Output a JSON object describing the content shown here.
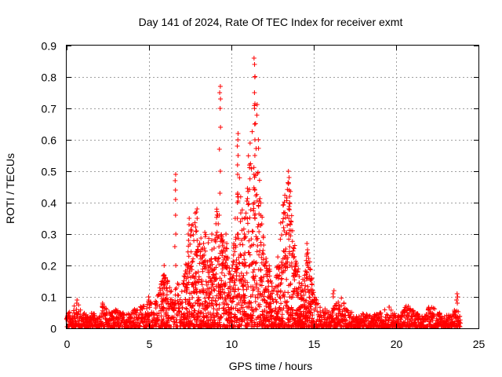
{
  "chart_data": {
    "type": "scatter",
    "title": "Day 141 of 2024, Rate Of TEC Index for receiver exmt",
    "xlabel": "GPS time / hours",
    "ylabel": "ROTI / TECUs",
    "xlim": [
      0,
      25
    ],
    "ylim": [
      0,
      0.9
    ],
    "x_ticks": [
      "0",
      "5",
      "10",
      "15",
      "20",
      "25"
    ],
    "y_ticks": [
      "0",
      "0.1",
      "0.2",
      "0.3",
      "0.4",
      "0.5",
      "0.6",
      "0.7",
      "0.8",
      "0.9"
    ],
    "grid": true,
    "marker": "+",
    "colors": {
      "series": "#ff0000",
      "grid": "#a0a0a0",
      "axis": "#000000"
    },
    "envelope": {
      "x": [
        0.0,
        0.3,
        0.6,
        1.0,
        1.5,
        2.0,
        2.2,
        2.5,
        3.0,
        3.5,
        4.0,
        4.5,
        4.8,
        5.0,
        5.3,
        5.6,
        5.9,
        6.2,
        6.5,
        6.7,
        7.0,
        7.3,
        7.6,
        7.8,
        8.0,
        8.3,
        8.6,
        8.9,
        9.1,
        9.4,
        9.7,
        10.0,
        10.3,
        10.5,
        10.8,
        11.0,
        11.3,
        11.5,
        11.8,
        12.0,
        12.3,
        12.6,
        13.0,
        13.3,
        13.5,
        13.8,
        14.0,
        14.3,
        14.6,
        14.8,
        15.1,
        15.5,
        16.0,
        16.3,
        16.7,
        17.0,
        17.5,
        18.0,
        18.5,
        19.0,
        19.3,
        19.6,
        20.0,
        20.3,
        20.6,
        21.0,
        21.5,
        21.8,
        22.1,
        22.5,
        23.0,
        23.4,
        23.7,
        23.9
      ],
      "y": [
        0.06,
        0.05,
        0.09,
        0.05,
        0.05,
        0.04,
        0.08,
        0.06,
        0.06,
        0.05,
        0.06,
        0.07,
        0.08,
        0.1,
        0.08,
        0.12,
        0.2,
        0.14,
        0.1,
        0.15,
        0.12,
        0.25,
        0.35,
        0.38,
        0.26,
        0.32,
        0.3,
        0.2,
        0.4,
        0.3,
        0.27,
        0.15,
        0.4,
        0.5,
        0.3,
        0.55,
        0.7,
        0.85,
        0.4,
        0.25,
        0.2,
        0.12,
        0.35,
        0.45,
        0.5,
        0.28,
        0.2,
        0.15,
        0.26,
        0.2,
        0.1,
        0.07,
        0.05,
        0.08,
        0.1,
        0.07,
        0.04,
        0.05,
        0.04,
        0.05,
        0.06,
        0.07,
        0.04,
        0.05,
        0.08,
        0.06,
        0.04,
        0.05,
        0.08,
        0.06,
        0.04,
        0.05,
        0.07,
        0.04
      ]
    },
    "spikes": [
      {
        "x": 0.6,
        "values": [
          0.08,
          0.09
        ]
      },
      {
        "x": 2.2,
        "values": [
          0.07,
          0.08
        ]
      },
      {
        "x": 5.0,
        "values": [
          0.09,
          0.1
        ]
      },
      {
        "x": 5.9,
        "values": [
          0.14,
          0.17,
          0.2
        ]
      },
      {
        "x": 6.6,
        "values": [
          0.2,
          0.26,
          0.3,
          0.36,
          0.41,
          0.44,
          0.47,
          0.49
        ]
      },
      {
        "x": 7.4,
        "values": [
          0.28,
          0.3,
          0.33,
          0.35
        ]
      },
      {
        "x": 7.9,
        "values": [
          0.28,
          0.31,
          0.35,
          0.37,
          0.38
        ]
      },
      {
        "x": 8.8,
        "values": [
          0.22,
          0.25,
          0.28,
          0.3
        ]
      },
      {
        "x": 9.3,
        "values": [
          0.36,
          0.43,
          0.5,
          0.57,
          0.64,
          0.7,
          0.73,
          0.75,
          0.77
        ]
      },
      {
        "x": 9.7,
        "values": [
          0.27,
          0.3
        ]
      },
      {
        "x": 10.4,
        "values": [
          0.3,
          0.35,
          0.4,
          0.43,
          0.49,
          0.52,
          0.55,
          0.58,
          0.6,
          0.62
        ]
      },
      {
        "x": 10.8,
        "values": [
          0.24,
          0.3,
          0.35
        ]
      },
      {
        "x": 11.4,
        "values": [
          0.35,
          0.4,
          0.44,
          0.49,
          0.55,
          0.6,
          0.65,
          0.7,
          0.75,
          0.8,
          0.84,
          0.86
        ]
      },
      {
        "x": 13.5,
        "values": [
          0.3,
          0.35,
          0.38,
          0.4,
          0.42,
          0.44,
          0.46,
          0.48,
          0.5
        ]
      },
      {
        "x": 14.6,
        "values": [
          0.18,
          0.2,
          0.23,
          0.25,
          0.27
        ]
      },
      {
        "x": 16.2,
        "values": [
          0.1,
          0.11,
          0.12
        ]
      },
      {
        "x": 23.7,
        "values": [
          0.08,
          0.09,
          0.1,
          0.11
        ]
      }
    ]
  }
}
